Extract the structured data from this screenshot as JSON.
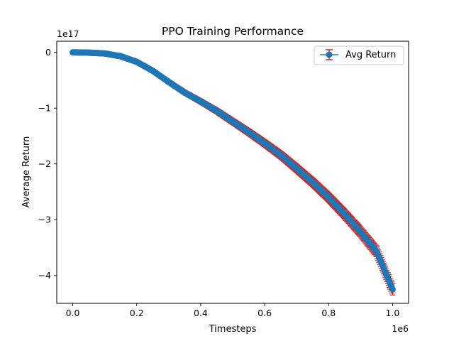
{
  "chart_data": {
    "type": "line",
    "title": "PPO Training Performance",
    "xlabel": "Timesteps",
    "ylabel": "Average Return",
    "x_offset_label": "1e6",
    "y_offset_label": "1e17",
    "xlim": [
      -0.05,
      1.05
    ],
    "ylim": [
      -4.5,
      0.2
    ],
    "x_ticks": [
      0.0,
      0.2,
      0.4,
      0.6,
      0.8,
      1.0
    ],
    "x_tick_labels": [
      "0.0",
      "0.2",
      "0.4",
      "0.6",
      "0.8",
      "1.0"
    ],
    "y_ticks": [
      0,
      -1,
      -2,
      -3,
      -4
    ],
    "y_tick_labels": [
      "0",
      "−1",
      "−2",
      "−3",
      "−4"
    ],
    "grid": false,
    "legend_position": "top-right",
    "series": [
      {
        "name": "Avg Return",
        "color": "#1f77b4",
        "errorbar_color": "#d62728",
        "marker": "circle",
        "x": [
          0.0,
          0.05,
          0.1,
          0.15,
          0.2,
          0.25,
          0.3,
          0.35,
          0.4,
          0.45,
          0.5,
          0.55,
          0.6,
          0.65,
          0.7,
          0.75,
          0.8,
          0.85,
          0.9,
          0.95,
          1.0
        ],
        "y": [
          0.0,
          -0.005,
          -0.02,
          -0.07,
          -0.17,
          -0.33,
          -0.53,
          -0.72,
          -0.88,
          -1.05,
          -1.24,
          -1.43,
          -1.63,
          -1.84,
          -2.08,
          -2.33,
          -2.6,
          -2.9,
          -3.22,
          -3.57,
          -4.25
        ],
        "error": [
          0.0,
          0.005,
          0.01,
          0.015,
          0.02,
          0.025,
          0.03,
          0.035,
          0.04,
          0.045,
          0.05,
          0.055,
          0.06,
          0.065,
          0.07,
          0.075,
          0.08,
          0.085,
          0.09,
          0.095,
          0.1
        ]
      }
    ]
  }
}
